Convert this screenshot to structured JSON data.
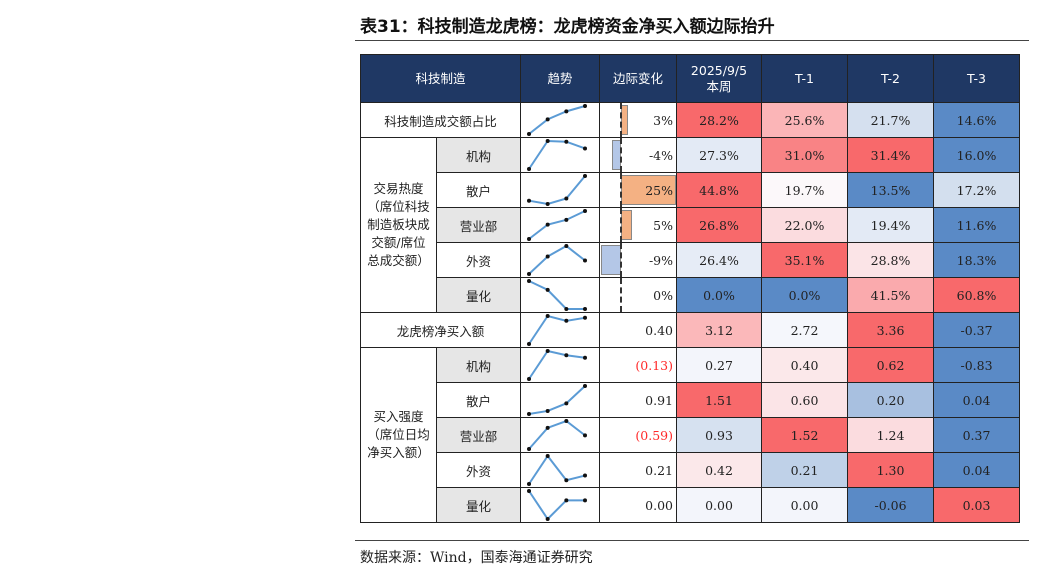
{
  "title": "表31：科技制造龙虎榜：龙虎榜资金净买入额边际抬升",
  "source": "数据来源：Wind，国泰海通证券研究",
  "headers": [
    "科技制造",
    "趋势",
    "边际变化",
    "2025/9/5\n本周",
    "T-1",
    "T-2",
    "T-3"
  ],
  "groups": [
    {
      "label": "交易热度（席位科技制造板块成交额/席位总成交额）",
      "lines": [
        "交易热度",
        "（席位科技",
        "制造板块成",
        "交额/席位",
        "总成交额）"
      ]
    },
    {
      "label": "买入强度（席位日均净买入额）",
      "lines": [
        "买入强度",
        "（席位日均",
        "净买入额）"
      ]
    }
  ],
  "rows": [
    {
      "label": "科技制造成交额占比",
      "group": null,
      "gray": false,
      "change": "3%",
      "bar": 3,
      "cells": [
        {
          "v": "28.2%",
          "bg": "#f8696b"
        },
        {
          "v": "25.6%",
          "bg": "#fbb5b7"
        },
        {
          "v": "21.7%",
          "bg": "#d5e0ef"
        },
        {
          "v": "14.6%",
          "bg": "#5a8ac6"
        }
      ]
    },
    {
      "label": "机构",
      "group": 0,
      "gray": true,
      "change": "-4%",
      "bar": -4,
      "cells": [
        {
          "v": "27.3%",
          "bg": "#e3eaf5"
        },
        {
          "v": "31.0%",
          "bg": "#f98385"
        },
        {
          "v": "31.4%",
          "bg": "#f8696b"
        },
        {
          "v": "16.0%",
          "bg": "#5a8ac6"
        }
      ]
    },
    {
      "label": "散户",
      "group": 0,
      "gray": false,
      "change": "25%",
      "bar": 25,
      "cells": [
        {
          "v": "44.8%",
          "bg": "#f8696b"
        },
        {
          "v": "19.7%",
          "bg": "#fcf8fa"
        },
        {
          "v": "13.5%",
          "bg": "#5a8ac6"
        },
        {
          "v": "17.2%",
          "bg": "#d3dfee"
        }
      ]
    },
    {
      "label": "营业部",
      "group": 0,
      "gray": true,
      "change": "5%",
      "bar": 5,
      "cells": [
        {
          "v": "26.8%",
          "bg": "#f8696b"
        },
        {
          "v": "22.0%",
          "bg": "#fbdcdf"
        },
        {
          "v": "19.4%",
          "bg": "#e3eaf5"
        },
        {
          "v": "11.6%",
          "bg": "#5a8ac6"
        }
      ]
    },
    {
      "label": "外资",
      "group": 0,
      "gray": false,
      "change": "-9%",
      "bar": -9,
      "cells": [
        {
          "v": "26.4%",
          "bg": "#e6ecf6"
        },
        {
          "v": "35.1%",
          "bg": "#f8696b"
        },
        {
          "v": "28.8%",
          "bg": "#fbe4e7"
        },
        {
          "v": "18.3%",
          "bg": "#5a8ac6"
        }
      ]
    },
    {
      "label": "量化",
      "group": 0,
      "gray": true,
      "change": "0%",
      "bar": 0,
      "cells": [
        {
          "v": "0.0%",
          "bg": "#5a8ac6"
        },
        {
          "v": "0.0%",
          "bg": "#5a8ac6"
        },
        {
          "v": "41.5%",
          "bg": "#faaaad"
        },
        {
          "v": "60.8%",
          "bg": "#f8696b"
        }
      ]
    },
    {
      "label": "龙虎榜净买入额",
      "group": null,
      "gray": false,
      "change": "0.40",
      "cells": [
        {
          "v": "3.12",
          "bg": "#fbb8ba"
        },
        {
          "v": "2.72",
          "bg": "#f5f7fc"
        },
        {
          "v": "3.36",
          "bg": "#f8696b"
        },
        {
          "v": "-0.37",
          "bg": "#5a8ac6"
        }
      ]
    },
    {
      "label": "机构",
      "group": 1,
      "gray": true,
      "change": "(0.13)",
      "negative": true,
      "cells": [
        {
          "v": "0.27",
          "bg": "#f3f5fb"
        },
        {
          "v": "0.40",
          "bg": "#fbe8ea"
        },
        {
          "v": "0.62",
          "bg": "#f8696b"
        },
        {
          "v": "-0.83",
          "bg": "#5a8ac6"
        }
      ]
    },
    {
      "label": "散户",
      "group": 1,
      "gray": false,
      "change": "0.91",
      "cells": [
        {
          "v": "1.51",
          "bg": "#f8696b"
        },
        {
          "v": "0.60",
          "bg": "#fbe4e7"
        },
        {
          "v": "0.20",
          "bg": "#a8c0e0"
        },
        {
          "v": "0.04",
          "bg": "#5a8ac6"
        }
      ]
    },
    {
      "label": "营业部",
      "group": 1,
      "gray": true,
      "change": "(0.59)",
      "negative": true,
      "cells": [
        {
          "v": "0.93",
          "bg": "#d6e1f0"
        },
        {
          "v": "1.52",
          "bg": "#f8696b"
        },
        {
          "v": "1.24",
          "bg": "#fbdcdf"
        },
        {
          "v": "0.37",
          "bg": "#5a8ac6"
        }
      ]
    },
    {
      "label": "外资",
      "group": 1,
      "gray": false,
      "change": "0.21",
      "cells": [
        {
          "v": "0.42",
          "bg": "#fbe8ea"
        },
        {
          "v": "0.21",
          "bg": "#bfd1e8"
        },
        {
          "v": "1.30",
          "bg": "#f8696b"
        },
        {
          "v": "0.04",
          "bg": "#5a8ac6"
        }
      ]
    },
    {
      "label": "量化",
      "group": 1,
      "gray": true,
      "change": "0.00",
      "cells": [
        {
          "v": "0.00",
          "bg": "#f3f5fb"
        },
        {
          "v": "0.00",
          "bg": "#f3f5fb"
        },
        {
          "v": "-0.06",
          "bg": "#5a8ac6"
        },
        {
          "v": "0.03",
          "bg": "#f8696b"
        }
      ]
    }
  ],
  "colors": {
    "header": "#1f3864",
    "bar_positive": "#f4b183",
    "bar_negative": "#b4c7e7",
    "sparkline": "#5b9bd5",
    "negative_text": "#ff2a2a"
  }
}
